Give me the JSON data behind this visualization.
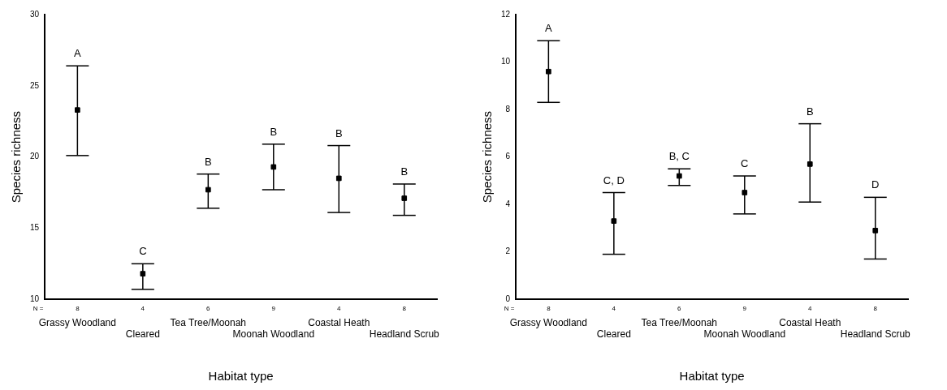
{
  "chart_data": [
    {
      "type": "scatter",
      "xlabel": "Habitat type",
      "ylabel": "Species richness",
      "categories": [
        "Grassy Woodland",
        "Cleared",
        "Tea Tree/Moonah",
        "Moonah Woodland",
        "Coastal Heath",
        "Headland Scrub"
      ],
      "color": "#000000",
      "values": [
        23.3,
        11.8,
        17.7,
        19.3,
        18.5,
        17.1
      ],
      "errors": [
        [
          20.1,
          26.4
        ],
        [
          10.7,
          12.5
        ],
        [
          16.4,
          18.8
        ],
        [
          17.7,
          20.9
        ],
        [
          16.1,
          20.8
        ],
        [
          15.9,
          18.1
        ]
      ],
      "ylim": [
        10,
        30
      ],
      "yticks": [
        10,
        15,
        20,
        25,
        30
      ],
      "grid": false,
      "legend": false,
      "marker": "square",
      "annotations": [
        "A",
        "C",
        "B",
        "B",
        "B",
        "B",
        "N =",
        "8",
        "4",
        "6",
        "9",
        "4",
        "8"
      ]
    },
    {
      "type": "scatter",
      "xlabel": "Habitat type",
      "ylabel": "Species richness",
      "categories": [
        "Grassy Woodland",
        "Cleared",
        "Tea Tree/Moonah",
        "Moonah Woodland",
        "Coastal Heath",
        "Headland Scrub"
      ],
      "color": "#000000",
      "values": [
        9.6,
        3.3,
        5.2,
        4.5,
        5.7,
        2.9
      ],
      "errors": [
        [
          8.3,
          10.9
        ],
        [
          1.9,
          4.5
        ],
        [
          4.8,
          5.5
        ],
        [
          3.6,
          5.2
        ],
        [
          4.1,
          7.4
        ],
        [
          1.7,
          4.3
        ]
      ],
      "ylim": [
        0,
        12
      ],
      "yticks": [
        0,
        2,
        4,
        6,
        8,
        10,
        12
      ],
      "grid": false,
      "legend": false,
      "marker": "square",
      "annotations": [
        "A",
        "C, D",
        "B, C",
        "C",
        "B",
        "D",
        "N =",
        "8",
        "4",
        "6",
        "9",
        "4",
        "8"
      ]
    }
  ]
}
